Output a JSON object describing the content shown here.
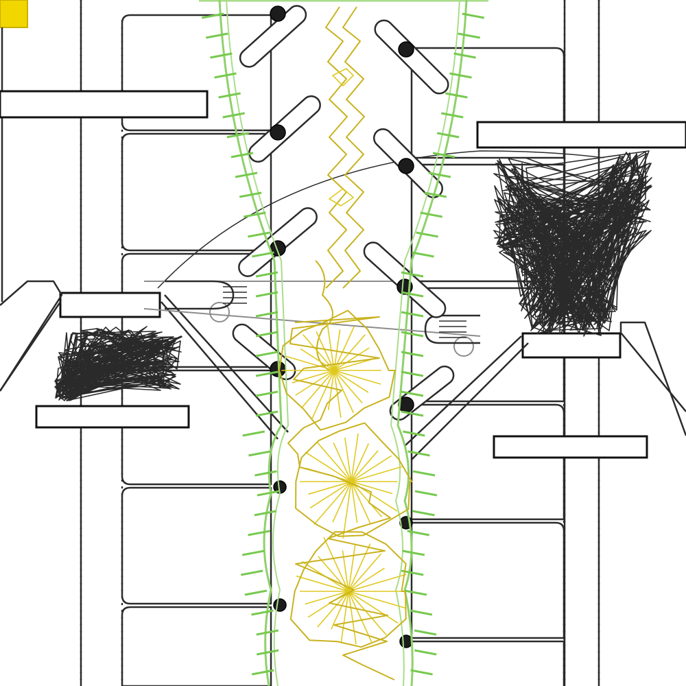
{
  "scene": {
    "corner_marker_color": "#f2d600",
    "channel_outline_color": "#8fd16a",
    "channel_tick_color": "#77c94f",
    "vine_color": "#c9b21e",
    "flower_color": "#e0c91f",
    "structure_color": "#2b2b2b",
    "background_color": "#ffffff"
  },
  "icons": {
    "marker": "yellow-square-icon",
    "gear": "gear-icon",
    "flower": "burst-flower-icon",
    "nest": "scribble-nest-icon"
  }
}
